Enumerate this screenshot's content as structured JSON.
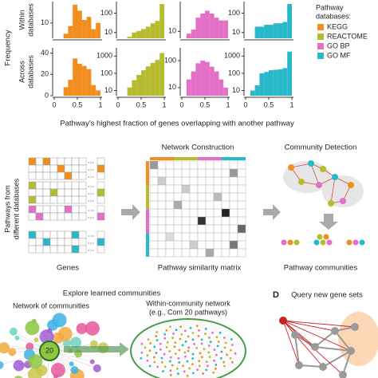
{
  "chart_data": [
    {
      "type": "histogram",
      "color": "#f28e1e",
      "bins": [
        0,
        0.1,
        0.2,
        0.3,
        0.4,
        0.5,
        0.6,
        0.7,
        0.8,
        0.9,
        1
      ],
      "values": [
        0,
        0,
        3,
        8,
        22,
        18,
        12,
        14,
        6,
        10
      ],
      "xlim": [
        0,
        1
      ],
      "ylim": [
        0,
        24
      ],
      "yticks": [
        10
      ],
      "log": false
    },
    {
      "type": "histogram",
      "color": "#b5bd2e",
      "bins": [
        0,
        0.1,
        0.2,
        0.3,
        0.4,
        0.5,
        0.6,
        0.7,
        0.8,
        0.9,
        1
      ],
      "values": [
        0,
        0,
        6,
        10,
        12,
        15,
        20,
        30,
        40,
        300
      ],
      "xlim": [
        0,
        1
      ],
      "ylim": [
        5,
        400
      ],
      "yticks": [
        100,
        10
      ],
      "log": true
    },
    {
      "type": "histogram",
      "color": "#e36fc6",
      "bins": [
        0,
        0.1,
        0.2,
        0.3,
        0.4,
        0.5,
        0.6,
        0.7,
        0.8,
        0.9,
        1
      ],
      "values": [
        0,
        8,
        12,
        40,
        60,
        80,
        60,
        40,
        30,
        30
      ],
      "xlim": [
        0,
        1
      ],
      "ylim": [
        5,
        200
      ],
      "yticks": [
        10
      ],
      "log": true
    },
    {
      "type": "histogram",
      "color": "#27b8c9",
      "bins": [
        0,
        0.1,
        0.2,
        0.3,
        0.4,
        0.5,
        0.6,
        0.7,
        0.8,
        0.9,
        1
      ],
      "values": [
        0,
        0,
        20,
        20,
        25,
        25,
        30,
        30,
        35,
        300
      ],
      "xlim": [
        0,
        1
      ],
      "ylim": [
        5,
        400
      ],
      "yticks": [
        100,
        10
      ],
      "log": true
    },
    {
      "type": "histogram",
      "color": "#f28e1e",
      "bins": [
        0,
        0.1,
        0.2,
        0.3,
        0.4,
        0.5,
        0.6,
        0.7,
        0.8,
        0.9,
        1
      ],
      "values": [
        0,
        0,
        8,
        15,
        35,
        30,
        28,
        25,
        10,
        5
      ],
      "xlim": [
        0,
        1
      ],
      "ylim": [
        0,
        45
      ],
      "yticks": [
        0,
        20,
        40
      ],
      "xticks": [
        0,
        0.5,
        1
      ],
      "log": false
    },
    {
      "type": "histogram",
      "color": "#b5bd2e",
      "bins": [
        0,
        0.1,
        0.2,
        0.3,
        0.4,
        0.5,
        0.6,
        0.7,
        0.8,
        0.9,
        1
      ],
      "values": [
        0,
        0,
        15,
        40,
        80,
        150,
        250,
        400,
        600,
        1500
      ],
      "xlim": [
        0,
        1
      ],
      "ylim": [
        5,
        3000
      ],
      "yticks": [
        10,
        100,
        1000
      ],
      "xticks": [
        0,
        0.5,
        1
      ],
      "log": true
    },
    {
      "type": "histogram",
      "color": "#e36fc6",
      "bins": [
        0,
        0.1,
        0.2,
        0.3,
        0.4,
        0.5,
        0.6,
        0.7,
        0.8,
        0.9,
        1
      ],
      "values": [
        0,
        20,
        40,
        80,
        100,
        90,
        60,
        40,
        20,
        10
      ],
      "xlim": [
        0,
        1
      ],
      "ylim": [
        5,
        300
      ],
      "yticks": [
        10,
        100
      ],
      "xticks": [
        0,
        0.5,
        1
      ],
      "log": true
    },
    {
      "type": "histogram",
      "color": "#27b8c9",
      "bins": [
        0,
        0.1,
        0.2,
        0.3,
        0.4,
        0.5,
        0.6,
        0.7,
        0.8,
        0.9,
        1
      ],
      "values": [
        0,
        10,
        20,
        100,
        120,
        150,
        160,
        170,
        200,
        1800
      ],
      "xlim": [
        0,
        1
      ],
      "ylim": [
        5,
        3000
      ],
      "yticks": [
        10,
        100,
        1000
      ],
      "xticks": [
        0,
        0.5,
        1
      ],
      "log": true
    }
  ],
  "panel_a": {
    "ylabel": "Frequency",
    "row_labels": [
      [
        "Within",
        "databases"
      ],
      [
        "Across",
        "databases"
      ]
    ],
    "xlabel": "Pathway’s highest fraction of genes overlapping with another pathway",
    "legend": {
      "title": [
        "Pathway",
        "databases:"
      ],
      "items": [
        {
          "name": "KEGG",
          "color": "#f28e1e"
        },
        {
          "name": "REACTOME",
          "color": "#b5bd2e"
        },
        {
          "name": "GO BP",
          "color": "#e36fc6"
        },
        {
          "name": "GO MF",
          "color": "#27b8c9"
        }
      ]
    }
  },
  "panel_b": {
    "y_label": [
      "Pathways from",
      "different databases"
    ],
    "genes_label": "Genes",
    "network_title": "Network Construction",
    "matrix_label": "Pathway similarity matrix",
    "community_title": "Community Detection",
    "communities_label": "Pathway communities"
  },
  "panel_c": {
    "title": "Explore learned communities",
    "network_label": "Network of communities",
    "within_label": [
      "Within-community network",
      "(e.g., Com 20 pathways)"
    ],
    "node_label": "20"
  },
  "panel_d": {
    "letter": "D",
    "title": "Query new gene sets"
  }
}
